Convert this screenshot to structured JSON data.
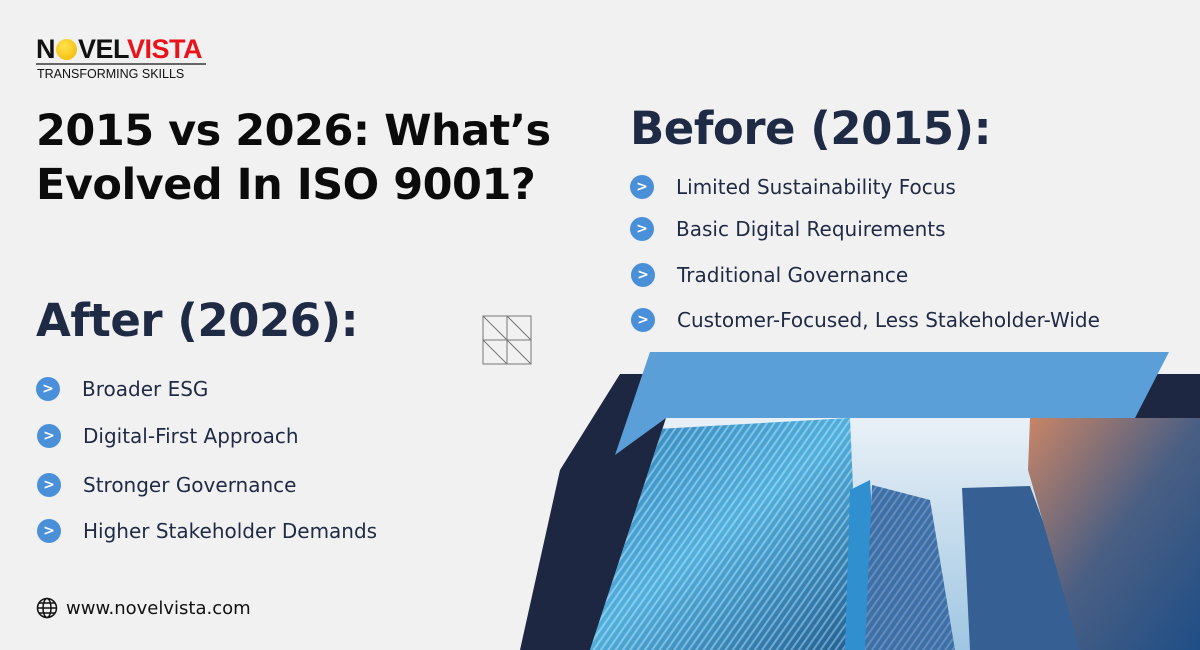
{
  "logo": {
    "part1": "N",
    "part2": "VEL",
    "part3": "VISTA",
    "tagline": "TRANSFORMING SKILLS"
  },
  "title": {
    "line1": "2015 vs 2026: What’s",
    "line2": "Evolved In ISO 9001?"
  },
  "before": {
    "heading": "Before (2015):",
    "items": [
      "Limited Sustainability Focus",
      "Basic Digital Requirements",
      "Traditional Governance",
      "Customer-Focused, Less Stakeholder-Wide"
    ]
  },
  "after": {
    "heading": "After (2026):",
    "items": [
      "Broader ESG",
      "Digital-First Approach",
      "Stronger Governance",
      "Higher Stakeholder Demands"
    ]
  },
  "footer": {
    "url": "www.novelvista.com",
    "icon": "globe-icon"
  },
  "colors": {
    "navy": "#1d2742",
    "accent_blue": "#5b9fd8",
    "bullet": "#4a90d9",
    "logo_red": "#e8131b"
  }
}
